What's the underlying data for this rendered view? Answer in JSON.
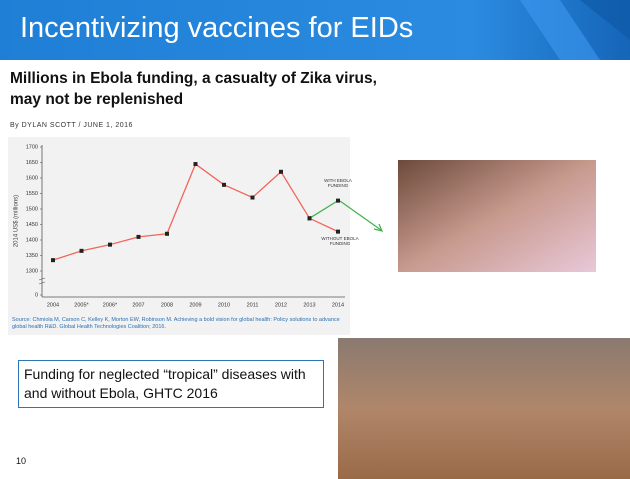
{
  "slide_title": "Incentivizing vaccines for EIDs",
  "headline": "Millions in Ebola funding, a casualty of Zika virus, may not be replenished",
  "byline": "By DYLAN SCOTT / JUNE 1, 2016",
  "caption": "Funding for neglected “tropical” diseases with and without Ebola, GHTC 2016",
  "page_number": "10",
  "chart_data": {
    "type": "line",
    "y_label": "2014 US$ (millions)",
    "source": "Source: Chmiola M, Carson C, Kelley K, Morton EW, Robinson M. Achieving a bold vision for global health: Policy solutions to advance global health R&D. Global Health Technologies Coalition; 2016.",
    "categories": [
      "2004",
      "2005*",
      "2006*",
      "2007",
      "2008",
      "2009",
      "2010",
      "2011",
      "2012",
      "2013",
      "2014"
    ],
    "series": [
      {
        "name": "WITHOUT EBOLA FUNDING",
        "color": "#f0675a",
        "values": [
          1335,
          1365,
          1385,
          1410,
          1420,
          1645,
          1578,
          1537,
          1620,
          1470,
          1427
        ]
      },
      {
        "name": "WITH EBOLA FUNDING",
        "color": "#3cb44b",
        "values": [
          null,
          null,
          null,
          null,
          null,
          null,
          null,
          null,
          null,
          1470,
          1527
        ]
      }
    ],
    "ylim": [
      0,
      1700
    ],
    "yticks": [
      0,
      1300,
      1350,
      1400,
      1450,
      1500,
      1550,
      1600,
      1650,
      1700
    ],
    "axis_break": true,
    "grid": false
  }
}
